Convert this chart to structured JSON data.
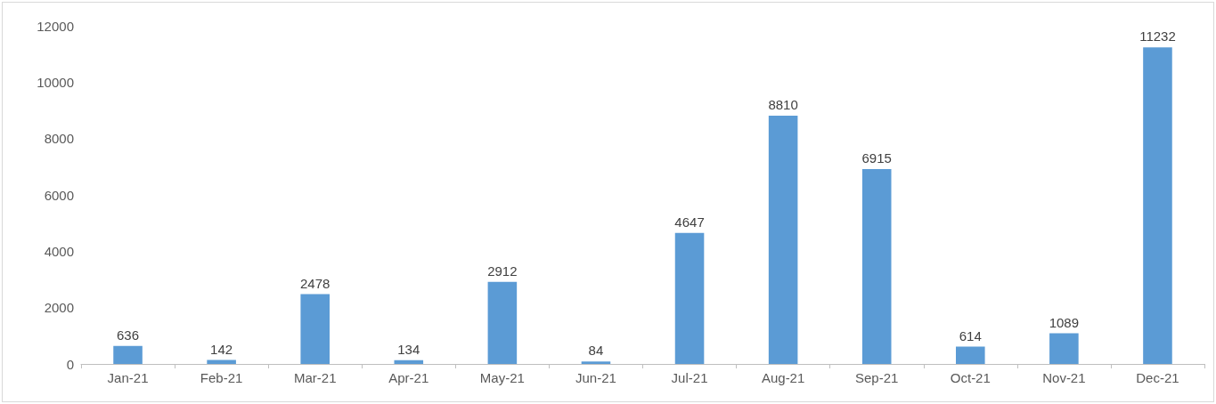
{
  "chart_data": {
    "type": "bar",
    "categories": [
      "Jan-21",
      "Feb-21",
      "Mar-21",
      "Apr-21",
      "May-21",
      "Jun-21",
      "Jul-21",
      "Aug-21",
      "Sep-21",
      "Oct-21",
      "Nov-21",
      "Dec-21"
    ],
    "values": [
      636,
      142,
      2478,
      134,
      2912,
      84,
      4647,
      8810,
      6915,
      614,
      1089,
      11232
    ],
    "color": "#5b9bd5",
    "ylim": [
      0,
      12000
    ],
    "yticks": [
      0,
      2000,
      4000,
      6000,
      8000,
      10000,
      12000
    ],
    "grid": false,
    "data_labels": true
  }
}
